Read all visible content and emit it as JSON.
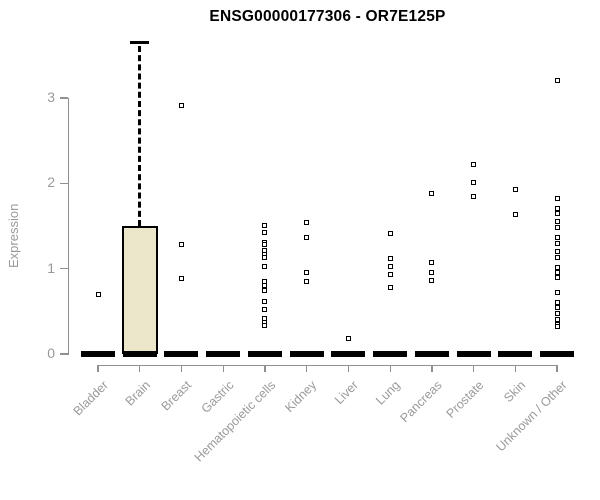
{
  "title": "ENSG00000177306 - OR7E125P",
  "colors": {
    "box_fill": "#ece7cb",
    "axis": "#8f8f8f",
    "tick_text": "#9a9a9a",
    "marker": "#000000",
    "title_text": "#000000"
  },
  "chart_data": {
    "type": "boxplot-scatter",
    "title": "ENSG00000177306 - OR7E125P",
    "xlabel": "",
    "ylabel": "Expression",
    "yticks": [
      0,
      1,
      2,
      3
    ],
    "ylim": [
      0,
      3.8
    ],
    "grid": false,
    "legend": false,
    "categories": [
      "Bladder",
      "Brain",
      "Breast",
      "Gastric",
      "Hematopoietic cells",
      "Kidney",
      "Liver",
      "Lung",
      "Pancreas",
      "Prostate",
      "Skin",
      "Unknown / Other"
    ],
    "series": [
      {
        "name": "Bladder",
        "median": 0,
        "points": [
          0.7
        ]
      },
      {
        "name": "Brain",
        "median": 0,
        "box": {
          "q1": 0,
          "q3": 1.5,
          "whisker_high": 3.65
        },
        "points": []
      },
      {
        "name": "Breast",
        "median": 0,
        "points": [
          2.91,
          1.28,
          0.88
        ]
      },
      {
        "name": "Gastric",
        "median": 0,
        "points": []
      },
      {
        "name": "Hematopoietic cells",
        "median": 0,
        "points": [
          1.51,
          1.42,
          1.31,
          1.28,
          1.21,
          1.17,
          1.13,
          1.02,
          0.85,
          0.8,
          0.74,
          0.61,
          0.52,
          0.42,
          0.37,
          0.33
        ]
      },
      {
        "name": "Kidney",
        "median": 0,
        "points": [
          1.54,
          1.37,
          0.96,
          0.85
        ]
      },
      {
        "name": "Liver",
        "median": 0,
        "points": [
          0.18
        ]
      },
      {
        "name": "Lung",
        "median": 0,
        "points": [
          1.41,
          1.12,
          1.02,
          0.93,
          0.78
        ]
      },
      {
        "name": "Pancreas",
        "median": 0,
        "points": [
          1.88,
          1.07,
          0.95,
          0.86
        ]
      },
      {
        "name": "Prostate",
        "median": 0,
        "points": [
          2.22,
          2.01,
          1.85
        ]
      },
      {
        "name": "Skin",
        "median": 0,
        "points": [
          1.93,
          1.64
        ]
      },
      {
        "name": "Unknown / Other",
        "median": 0,
        "points": [
          3.2,
          1.82,
          1.71,
          1.65,
          1.55,
          1.48,
          1.37,
          1.3,
          1.2,
          1.13,
          1.01,
          0.95,
          0.9,
          0.72,
          0.6,
          0.54,
          0.47,
          0.41,
          0.35,
          0.32
        ]
      }
    ]
  }
}
